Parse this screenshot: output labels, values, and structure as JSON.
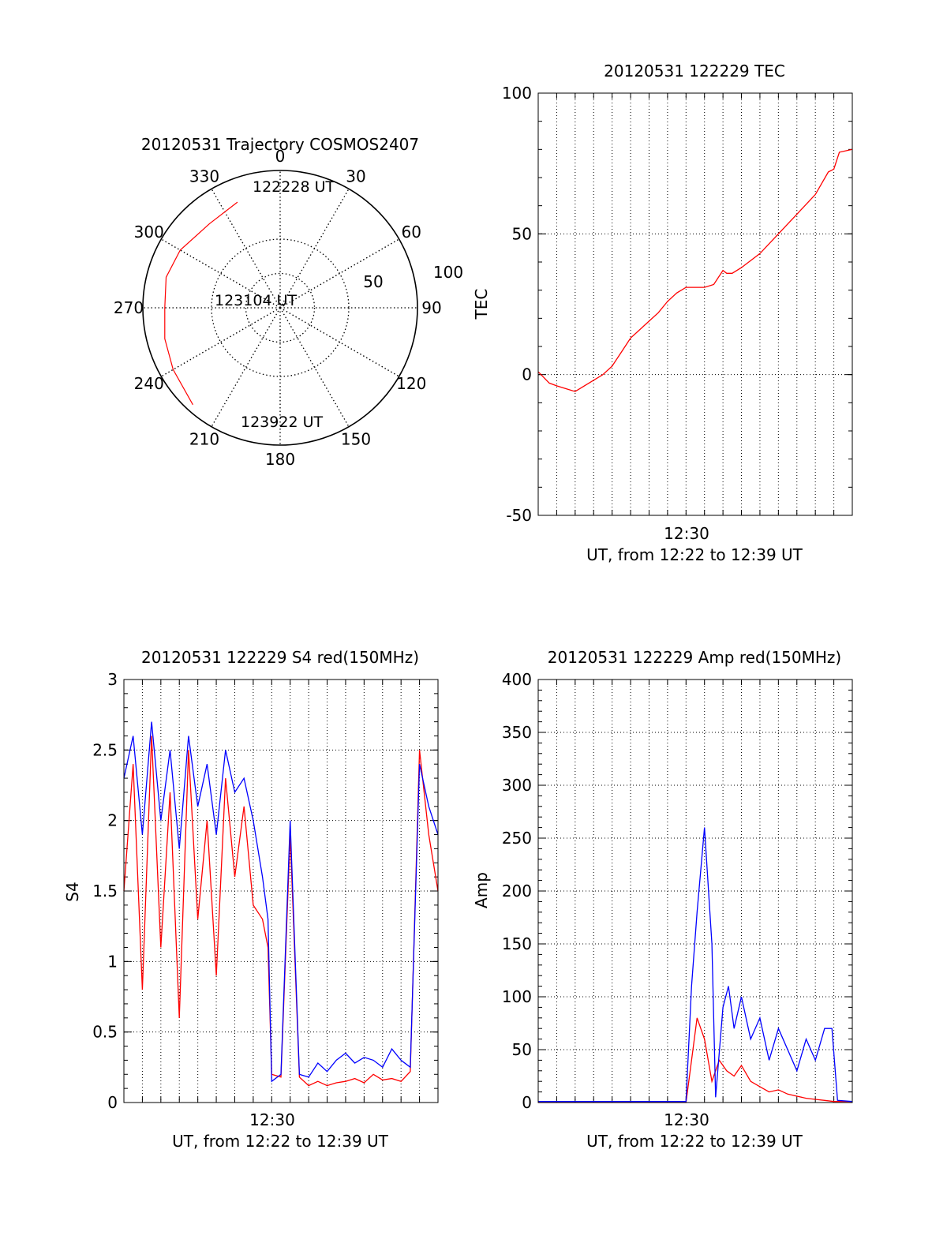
{
  "chart_data": [
    {
      "type": "polar",
      "title": "20120531 Trajectory COSMOS2407",
      "azimuth_labels": [
        "0",
        "30",
        "60",
        "90",
        "120",
        "150",
        "180",
        "210",
        "240",
        "270",
        "300",
        "330"
      ],
      "radial_labels": [
        "50",
        "100"
      ],
      "grid": true,
      "colors": {
        "trajectory": "#ff0000"
      },
      "trajectory": [
        {
          "azimuth": 338,
          "zenith": 83
        },
        {
          "azimuth": 320,
          "zenith": 80
        },
        {
          "azimuth": 300,
          "zenith": 84
        },
        {
          "azimuth": 285,
          "zenith": 86
        },
        {
          "azimuth": 270,
          "zenith": 84
        },
        {
          "azimuth": 255,
          "zenith": 87
        },
        {
          "azimuth": 240,
          "zenith": 90
        },
        {
          "azimuth": 222,
          "zenith": 95
        }
      ],
      "annotations": [
        "122228 UT",
        "123104 UT",
        "123922 UT"
      ]
    },
    {
      "type": "line",
      "title": "20120531 122229 TEC",
      "ylabel": "TEC",
      "xlabel": "UT, from 12:22 to 12:39 UT",
      "x_tick_labels": [
        "12:30"
      ],
      "y_tick_labels": [
        "-50",
        "0",
        "50",
        "100"
      ],
      "ylim": [
        -50,
        100
      ],
      "xlim_minutes": [
        0,
        17
      ],
      "grid": true,
      "colors": {
        "series": "#ff0000"
      },
      "series": [
        {
          "x": [
            0.0,
            0.3,
            0.6,
            1.0,
            1.5,
            2.0,
            2.5,
            3.0,
            3.5,
            4.0,
            4.5,
            5.0,
            5.5,
            6.0,
            6.5,
            7.0,
            7.5,
            8.0,
            8.5,
            9.0,
            9.5,
            10.0,
            10.2,
            10.5,
            11.0,
            12.0,
            13.0,
            14.0,
            15.0,
            15.7,
            16.0,
            16.3,
            17.0
          ],
          "y": [
            1,
            -1,
            -3,
            -4,
            -5,
            -6,
            -4,
            -2,
            0,
            3,
            8,
            13,
            16,
            19,
            22,
            26,
            29,
            31,
            31,
            31,
            32,
            37,
            36,
            36,
            38,
            43,
            50,
            57,
            64,
            72,
            73,
            79,
            80
          ]
        }
      ]
    },
    {
      "type": "line",
      "title": "20120531 122229 S4 red(150MHz)",
      "ylabel": "S4",
      "xlabel": "UT, from 12:22 to 12:39 UT",
      "x_tick_labels": [
        "12:30"
      ],
      "y_tick_labels": [
        "0",
        "0.5",
        "1",
        "1.5",
        "2",
        "2.5",
        "3"
      ],
      "ylim": [
        0,
        3
      ],
      "xlim_minutes": [
        0,
        17
      ],
      "grid": true,
      "colors": {
        "red": "#ff0000",
        "blue": "#0000ff"
      },
      "series": [
        {
          "color": "red",
          "x": [
            0.0,
            0.5,
            1.0,
            1.5,
            2.0,
            2.5,
            3.0,
            3.5,
            4.0,
            4.5,
            5.0,
            5.5,
            6.0,
            6.5,
            7.0,
            7.5,
            7.8,
            8.0,
            8.5,
            9.0,
            9.5,
            10.0,
            10.5,
            11.0,
            11.5,
            12.0,
            12.5,
            13.0,
            13.5,
            14.0,
            14.5,
            15.0,
            15.5,
            16.0,
            16.5,
            17.0
          ],
          "y": [
            1.5,
            2.4,
            0.8,
            2.6,
            1.1,
            2.2,
            0.6,
            2.5,
            1.3,
            2.0,
            0.9,
            2.3,
            1.6,
            2.1,
            1.4,
            1.3,
            1.1,
            0.2,
            0.18,
            1.9,
            0.18,
            0.12,
            0.15,
            0.12,
            0.14,
            0.15,
            0.17,
            0.14,
            0.2,
            0.16,
            0.17,
            0.15,
            0.22,
            2.5,
            1.9,
            1.5
          ]
        },
        {
          "color": "blue",
          "x": [
            0.0,
            0.5,
            1.0,
            1.5,
            2.0,
            2.5,
            3.0,
            3.5,
            4.0,
            4.5,
            5.0,
            5.5,
            6.0,
            6.5,
            7.0,
            7.5,
            7.8,
            8.0,
            8.5,
            9.0,
            9.5,
            10.0,
            10.5,
            11.0,
            11.5,
            12.0,
            12.5,
            13.0,
            13.5,
            14.0,
            14.5,
            15.0,
            15.5,
            16.0,
            16.5,
            17.0
          ],
          "y": [
            2.3,
            2.6,
            1.9,
            2.7,
            2.0,
            2.5,
            1.8,
            2.6,
            2.1,
            2.4,
            1.9,
            2.5,
            2.2,
            2.3,
            2.0,
            1.6,
            1.3,
            0.15,
            0.2,
            2.0,
            0.2,
            0.18,
            0.28,
            0.22,
            0.3,
            0.35,
            0.28,
            0.32,
            0.3,
            0.25,
            0.38,
            0.3,
            0.25,
            2.4,
            2.1,
            1.9
          ]
        }
      ]
    },
    {
      "type": "line",
      "title": "20120531 122229 Amp red(150MHz)",
      "ylabel": "Amp",
      "xlabel": "UT, from 12:22 to 12:39 UT",
      "x_tick_labels": [
        "12:30"
      ],
      "y_tick_labels": [
        "0",
        "50",
        "100",
        "150",
        "200",
        "250",
        "300",
        "350",
        "400"
      ],
      "ylim": [
        0,
        400
      ],
      "xlim_minutes": [
        0,
        17
      ],
      "grid": true,
      "colors": {
        "red": "#ff0000",
        "blue": "#0000ff"
      },
      "series": [
        {
          "color": "red",
          "x": [
            0.0,
            2.0,
            4.0,
            6.0,
            8.0,
            8.3,
            8.6,
            9.0,
            9.4,
            9.8,
            10.2,
            10.6,
            11.0,
            11.5,
            12.0,
            12.5,
            13.0,
            13.5,
            14.0,
            14.5,
            15.0,
            15.5,
            16.0,
            17.0
          ],
          "y": [
            0,
            0,
            0,
            0,
            0,
            40,
            80,
            60,
            20,
            40,
            30,
            25,
            35,
            20,
            15,
            10,
            12,
            8,
            6,
            4,
            3,
            2,
            1,
            1
          ]
        },
        {
          "color": "blue",
          "x": [
            0.0,
            2.0,
            4.0,
            6.0,
            8.0,
            8.3,
            8.6,
            9.0,
            9.4,
            9.6,
            10.0,
            10.3,
            10.6,
            11.0,
            11.5,
            12.0,
            12.5,
            13.0,
            13.5,
            14.0,
            14.5,
            15.0,
            15.5,
            15.9,
            16.2,
            17.0
          ],
          "y": [
            1,
            1,
            1,
            1,
            1,
            110,
            180,
            260,
            150,
            5,
            90,
            110,
            70,
            100,
            60,
            80,
            40,
            70,
            50,
            30,
            60,
            40,
            70,
            70,
            2,
            1
          ]
        }
      ]
    }
  ]
}
